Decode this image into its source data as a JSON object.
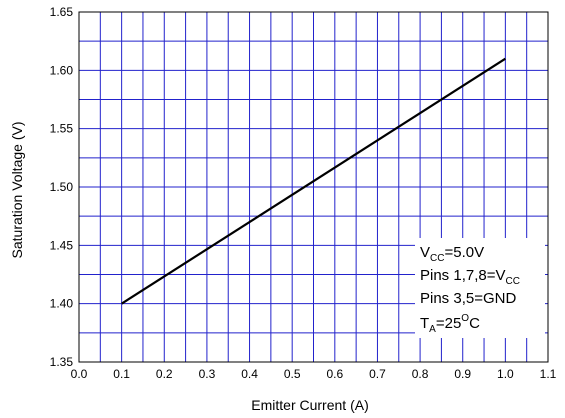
{
  "chart_data": {
    "type": "line",
    "xlabel": "Emitter Current (A)",
    "ylabel": "Saturation Voltage (V)",
    "xlim": [
      0.0,
      1.1
    ],
    "ylim": [
      1.35,
      1.65
    ],
    "x_ticks": [
      "0.0",
      "0.1",
      "0.2",
      "0.3",
      "0.4",
      "0.5",
      "0.6",
      "0.7",
      "0.8",
      "0.9",
      "1.0",
      "1.1"
    ],
    "y_ticks": [
      "1.35",
      "1.40",
      "1.45",
      "1.50",
      "1.55",
      "1.60",
      "1.65"
    ],
    "grid": true,
    "grid_color": "#2222cc",
    "line_color": "#000000",
    "series": [
      {
        "x": [
          0.1,
          1.0
        ],
        "y": [
          1.4,
          1.61
        ]
      }
    ],
    "annotations": {
      "vcc": {
        "main": "V",
        "sub": "CC",
        "rest": "=5.0V"
      },
      "pins_vcc": {
        "main": "Pins 1,7,8=V",
        "sub": "CC"
      },
      "pins_gnd": {
        "main": "Pins 3,5=GND"
      },
      "temp": {
        "main": "T",
        "sub": "A",
        "mid": "=25",
        "sup": "O",
        "rest": "C"
      }
    }
  }
}
